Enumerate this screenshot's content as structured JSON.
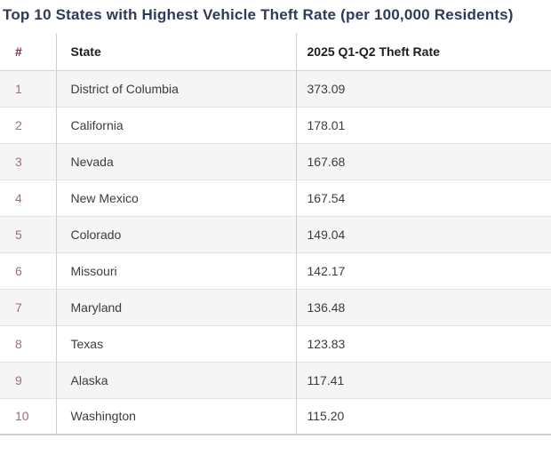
{
  "title": "Top 10 States with Highest Vehicle Theft Rate (per 100,000 Residents)",
  "colors": {
    "title_text": "#2e3a59",
    "header_text": "#1d1d1f",
    "header_rank_accent": "#7d3640",
    "rank_text": "#9b7077",
    "body_text": "#3c3c3c",
    "stripe_row_background": "#f5f5f6",
    "row_border": "#e3e3e3",
    "column_divider": "#cfcfcf"
  },
  "table": {
    "columns": [
      "#",
      "State",
      "2025 Q1-Q2 Theft Rate"
    ],
    "rows": [
      {
        "rank": "1",
        "state": "District of Columbia",
        "rate": "373.09"
      },
      {
        "rank": "2",
        "state": "California",
        "rate": "178.01"
      },
      {
        "rank": "3",
        "state": "Nevada",
        "rate": "167.68"
      },
      {
        "rank": "4",
        "state": "New Mexico",
        "rate": "167.54"
      },
      {
        "rank": "5",
        "state": "Colorado",
        "rate": "149.04"
      },
      {
        "rank": "6",
        "state": "Missouri",
        "rate": "142.17"
      },
      {
        "rank": "7",
        "state": "Maryland",
        "rate": "136.48"
      },
      {
        "rank": "8",
        "state": "Texas",
        "rate": "123.83"
      },
      {
        "rank": "9",
        "state": "Alaska",
        "rate": "117.41"
      },
      {
        "rank": "10",
        "state": "Washington",
        "rate": "115.20"
      }
    ]
  },
  "chart_data": {
    "type": "table",
    "title": "Top 10 States with Highest Vehicle Theft Rate (per 100,000 Residents)",
    "columns": [
      "#",
      "State",
      "2025 Q1-Q2 Theft Rate"
    ],
    "categories": [
      "District of Columbia",
      "California",
      "Nevada",
      "New Mexico",
      "Colorado",
      "Missouri",
      "Maryland",
      "Texas",
      "Alaska",
      "Washington"
    ],
    "values": [
      373.09,
      178.01,
      167.68,
      167.54,
      149.04,
      142.17,
      136.48,
      123.83,
      117.41,
      115.2
    ],
    "ranks": [
      1,
      2,
      3,
      4,
      5,
      6,
      7,
      8,
      9,
      10
    ],
    "ylabel": "Theft rate per 100,000 residents",
    "layout": "ranked table, zebra-striped rows, vertical column dividers"
  }
}
